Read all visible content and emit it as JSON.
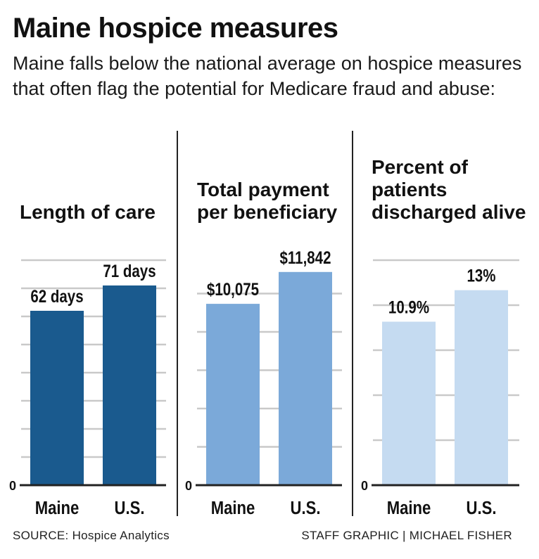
{
  "header": {
    "title": "Maine hospice measures",
    "subtitle": "Maine falls below the national average on hospice measures that often flag the potential for Medicare fraud and abuse:"
  },
  "chart_data": [
    {
      "type": "bar",
      "title": "Length of care",
      "categories": [
        "Maine",
        "U.S."
      ],
      "values": [
        62,
        71
      ],
      "data_labels": [
        "62 days",
        "71 days"
      ],
      "ylim": [
        0,
        80
      ],
      "y_tick_labels": [
        "0"
      ],
      "grid": true,
      "color": "#1a5a8e"
    },
    {
      "type": "bar",
      "title": "Total payment per beneficiary",
      "categories": [
        "Maine",
        "U.S."
      ],
      "values": [
        10075,
        11842
      ],
      "data_labels": [
        "$10,075",
        "$11,842"
      ],
      "ylim": [
        0,
        12500
      ],
      "y_tick_labels": [
        "0"
      ],
      "grid": true,
      "color": "#7ba9d9"
    },
    {
      "type": "bar",
      "title": "Percent of patients discharged alive",
      "categories": [
        "Maine",
        "U.S."
      ],
      "values": [
        10.9,
        13
      ],
      "data_labels": [
        "10.9%",
        "13%"
      ],
      "ylim": [
        0,
        15
      ],
      "y_tick_labels": [
        "0"
      ],
      "grid": true,
      "color": "#c5dbf1"
    }
  ],
  "footer": {
    "source": "SOURCE: Hospice Analytics",
    "credit": "STAFF GRAPHIC | MICHAEL FISHER"
  }
}
